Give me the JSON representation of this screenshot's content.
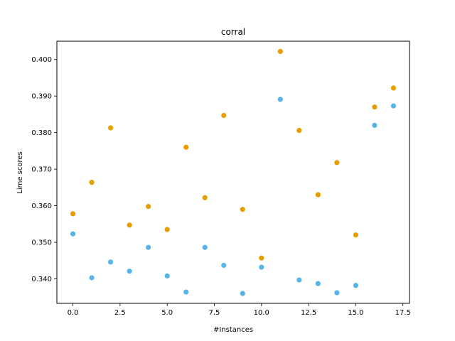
{
  "chart_data": {
    "type": "scatter",
    "title": "corral",
    "xlabel": "#Instances",
    "ylabel": "Lime scores",
    "xlim": [
      -0.85,
      17.85
    ],
    "ylim": [
      0.3333,
      0.405
    ],
    "xticks": [
      0.0,
      2.5,
      5.0,
      7.5,
      10.0,
      12.5,
      15.0,
      17.5
    ],
    "xtick_labels": [
      "0.0",
      "2.5",
      "5.0",
      "7.5",
      "10.0",
      "12.5",
      "15.0",
      "17.5"
    ],
    "yticks": [
      0.34,
      0.35,
      0.36,
      0.37,
      0.38,
      0.39,
      0.4
    ],
    "ytick_labels": [
      "0.340",
      "0.350",
      "0.360",
      "0.370",
      "0.380",
      "0.390",
      "0.400"
    ],
    "grid": false,
    "legend": "none",
    "series": [
      {
        "color": "#E69F00",
        "x": [
          0,
          1,
          2,
          3,
          4,
          5,
          6,
          7,
          8,
          9,
          10,
          11,
          12,
          13,
          14,
          15,
          16,
          17
        ],
        "y": [
          0.3578,
          0.3664,
          0.3813,
          0.3547,
          0.3598,
          0.3535,
          0.376,
          0.3622,
          0.3847,
          0.359,
          0.3457,
          0.4022,
          0.3806,
          0.363,
          0.3718,
          0.352,
          0.387,
          0.3922
        ]
      },
      {
        "color": "#56B4E9",
        "x": [
          0,
          1,
          2,
          3,
          4,
          5,
          6,
          7,
          8,
          9,
          10,
          11,
          12,
          13,
          14,
          15,
          16,
          17
        ],
        "y": [
          0.3523,
          0.3403,
          0.3446,
          0.3421,
          0.3486,
          0.3408,
          0.3364,
          0.3486,
          0.3437,
          0.336,
          0.3432,
          0.3891,
          0.3397,
          0.3387,
          0.3362,
          0.3382,
          0.382,
          0.3873
        ]
      }
    ]
  }
}
